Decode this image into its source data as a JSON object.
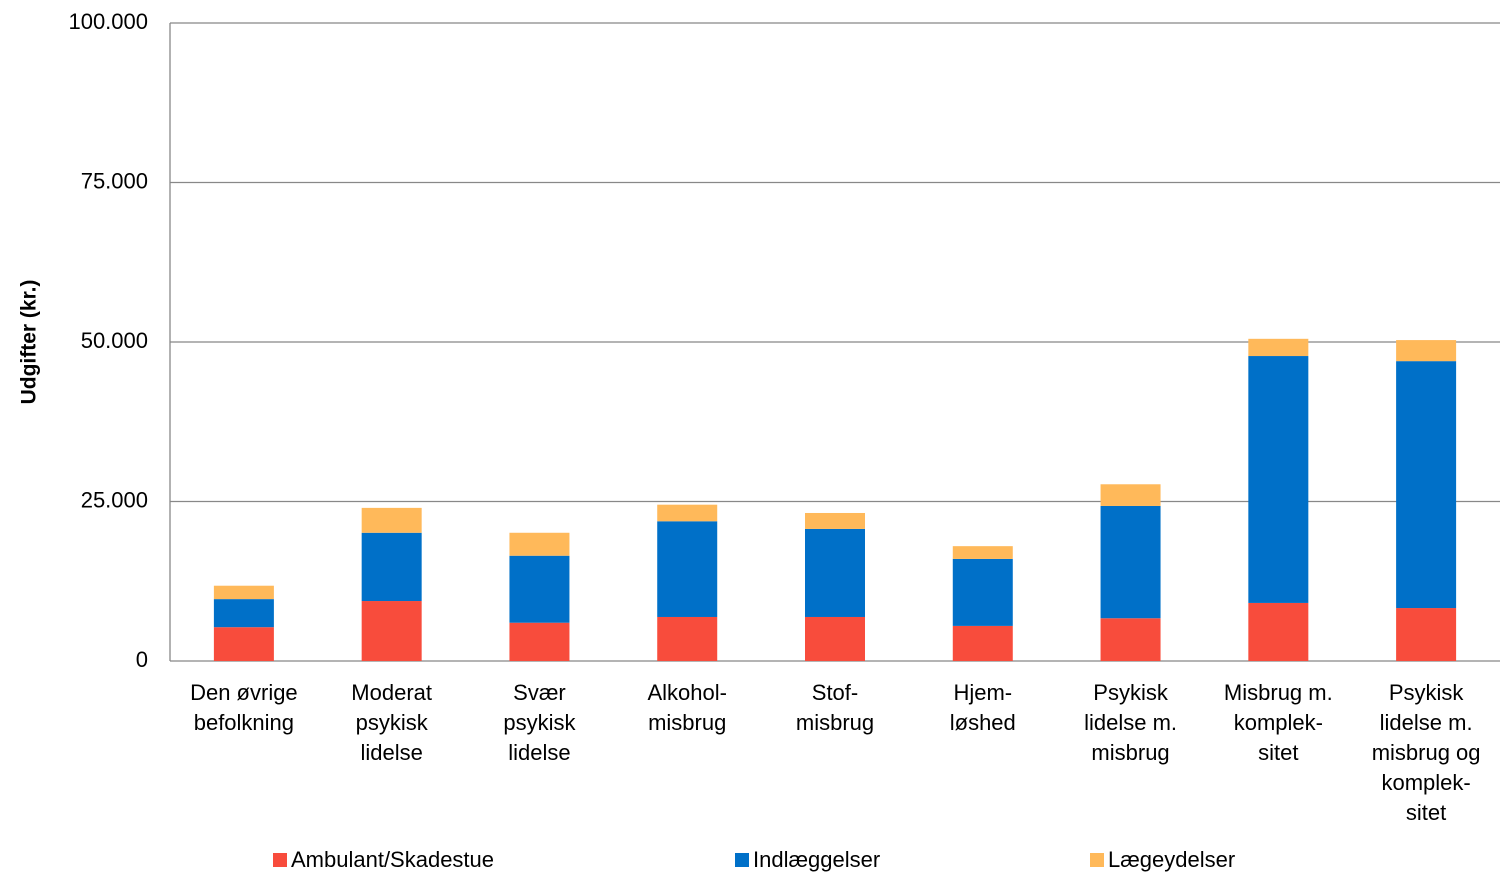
{
  "chart_data": {
    "type": "stacked_bar",
    "y_label": "Udgifter (kr.)",
    "categories": [
      [
        "Den øvrige",
        "befolkning"
      ],
      [
        "Moderat",
        "psykisk",
        "lidelse"
      ],
      [
        "Svær",
        "psykisk",
        "lidelse"
      ],
      [
        "Alkohol-",
        "misbrug"
      ],
      [
        "Stof-",
        "misbrug"
      ],
      [
        "Hjem-",
        "løshed"
      ],
      [
        "Psykisk",
        "lidelse m.",
        "misbrug"
      ],
      [
        "Misbrug m.",
        "komplek-",
        "sitet"
      ],
      [
        "Psykisk",
        "lidelse m.",
        "misbrug og",
        "komplek-",
        "sitet"
      ]
    ],
    "series": [
      {
        "name": "Ambulant/Skadestue",
        "color": "#f84c3c",
        "values": [
          5300,
          9400,
          6000,
          6900,
          6900,
          5500,
          6700,
          9100,
          8300
        ]
      },
      {
        "name": "Indlæggelser",
        "color": "#0070c8",
        "values": [
          4400,
          10700,
          10500,
          15000,
          13800,
          10500,
          17600,
          38700,
          38700
        ]
      },
      {
        "name": "Lægeydelser",
        "color": "#ffb95a",
        "values": [
          2100,
          3900,
          3600,
          2600,
          2500,
          2000,
          3400,
          2700,
          3300
        ]
      }
    ],
    "ylim": [
      0,
      100000
    ],
    "yticks": [
      0,
      {
        "value": 25000,
        "label": "25.000"
      },
      {
        "value": 50000,
        "label": "50.000"
      },
      {
        "value": 75000,
        "label": "75.000"
      },
      {
        "value": 100000,
        "label": "100.000"
      }
    ],
    "grid": true
  }
}
